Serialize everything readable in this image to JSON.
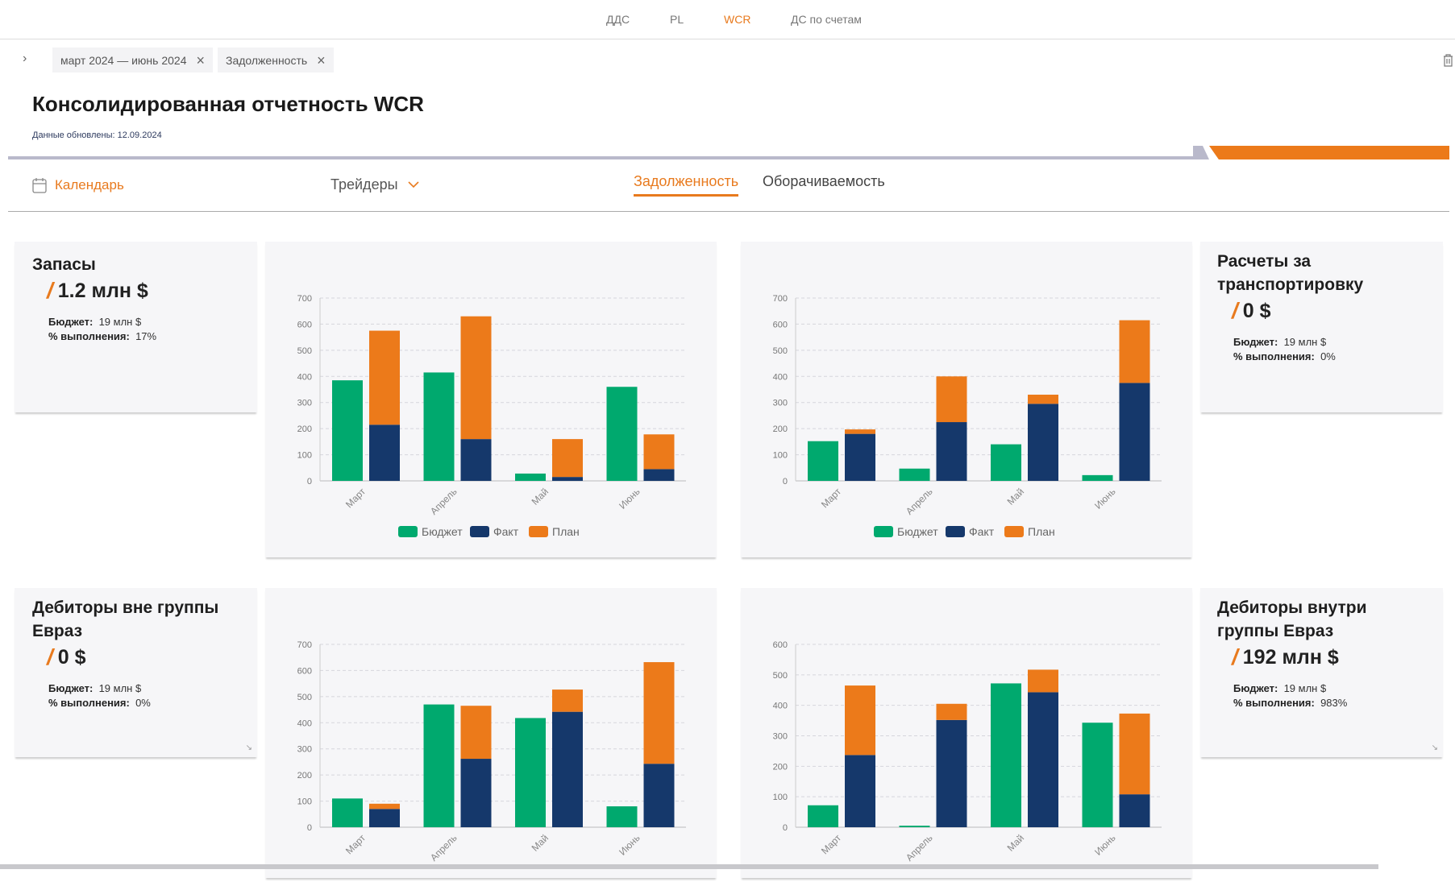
{
  "nav": {
    "items": [
      {
        "label": "ДДС",
        "active": false
      },
      {
        "label": "PL",
        "active": false
      },
      {
        "label": "WCR",
        "active": true
      },
      {
        "label": "ДС по счетам",
        "active": false
      }
    ]
  },
  "filters": {
    "chips": [
      {
        "label": "март 2024 — июнь 2024"
      },
      {
        "label": "Задолженность"
      }
    ]
  },
  "header": {
    "title": "Консолидированная отчетность WCR",
    "updated": "Данные обновлены: 12.09.2024"
  },
  "toolbar": {
    "calendar": "Календарь",
    "traders": "Трейдеры",
    "tabs": [
      {
        "label": "Задолженность",
        "active": true
      },
      {
        "label": "Оборачиваемость",
        "active": false
      }
    ]
  },
  "colors": {
    "accent": "#e87a1e",
    "budget": "#00a96e",
    "fact": "#15386b",
    "plan": "#ec7a1a"
  },
  "kpis": [
    {
      "title": "Запасы",
      "value": "1.2 млн $",
      "budget_label": "Бюджет:",
      "budget": "19 млн $",
      "pct_label": "% выполнения:",
      "pct": "17%"
    },
    {
      "title": "Расчеты за транспортировку",
      "value": "0 $",
      "budget_label": "Бюджет:",
      "budget": "19 млн $",
      "pct_label": "% выполнения:",
      "pct": "0%"
    },
    {
      "title": "Дебиторы вне группы Евраз",
      "value": "0 $",
      "budget_label": "Бюджет:",
      "budget": "19 млн $",
      "pct_label": "% выполнения:",
      "pct": "0%"
    },
    {
      "title": "Дебиторы внутри группы Евраз",
      "value": "192 млн $",
      "budget_label": "Бюджет:",
      "budget": "19 млн $",
      "pct_label": "% выполнения:",
      "pct": "983%"
    }
  ],
  "chart_data": [
    {
      "type": "bar",
      "categories": [
        "Март",
        "Апрель",
        "Май",
        "Июнь"
      ],
      "ylim": [
        0,
        700
      ],
      "yticks": [
        0,
        100,
        200,
        300,
        400,
        500,
        600,
        700
      ],
      "grid": true,
      "legend": "bottom",
      "series": [
        {
          "name": "Бюджет",
          "values": [
            385,
            415,
            28,
            360
          ]
        },
        {
          "name": "Факт",
          "values": [
            215,
            160,
            15,
            45
          ],
          "stack": "a"
        },
        {
          "name": "План",
          "values": [
            360,
            470,
            145,
            133
          ],
          "stack": "a"
        }
      ]
    },
    {
      "type": "bar",
      "categories": [
        "Март",
        "Апрель",
        "Май",
        "Июнь"
      ],
      "ylim": [
        0,
        700
      ],
      "yticks": [
        0,
        100,
        200,
        300,
        400,
        500,
        600,
        700
      ],
      "grid": true,
      "legend": "bottom",
      "series": [
        {
          "name": "Бюджет",
          "values": [
            152,
            47,
            140,
            22
          ]
        },
        {
          "name": "Факт",
          "values": [
            180,
            225,
            295,
            375
          ],
          "stack": "a"
        },
        {
          "name": "План",
          "values": [
            17,
            175,
            35,
            240
          ],
          "stack": "a"
        }
      ]
    },
    {
      "type": "bar",
      "categories": [
        "Март",
        "Апрель",
        "Май",
        "Июнь"
      ],
      "ylim": [
        0,
        700
      ],
      "yticks": [
        0,
        100,
        200,
        300,
        400,
        500,
        600,
        700
      ],
      "grid": true,
      "series": [
        {
          "values": [
            110,
            470,
            418,
            80
          ]
        },
        {
          "values": [
            70,
            262,
            442,
            243
          ],
          "stack": "a"
        },
        {
          "values": [
            20,
            203,
            85,
            389
          ],
          "stack": "a"
        }
      ]
    },
    {
      "type": "bar",
      "categories": [
        "Март",
        "Апрель",
        "Май",
        "Июнь"
      ],
      "ylim": [
        0,
        600
      ],
      "yticks": [
        0,
        100,
        200,
        300,
        400,
        500,
        600
      ],
      "grid": true,
      "series": [
        {
          "values": [
            72,
            5,
            472,
            343
          ]
        },
        {
          "values": [
            237,
            352,
            443,
            108
          ],
          "stack": "a"
        },
        {
          "values": [
            228,
            53,
            74,
            265
          ],
          "stack": "a"
        }
      ]
    }
  ]
}
